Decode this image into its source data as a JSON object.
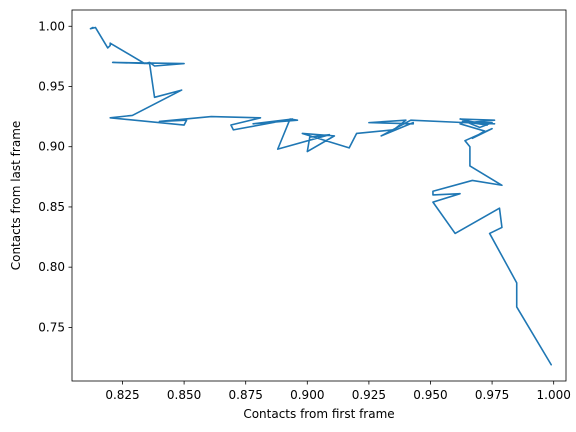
{
  "chart_data": {
    "type": "line",
    "title": "",
    "xlabel": "Contacts from first frame",
    "ylabel": "Contacts from last frame",
    "xlim": [
      0.8045,
      1.005
    ],
    "ylim": [
      0.7055,
      1.0135
    ],
    "xticks": [
      0.825,
      0.85,
      0.875,
      0.9,
      0.925,
      0.95,
      0.975,
      1.0
    ],
    "xtick_labels": [
      "0.825",
      "0.850",
      "0.875",
      "0.900",
      "0.925",
      "0.950",
      "0.975",
      "1.000"
    ],
    "yticks": [
      0.75,
      0.8,
      0.85,
      0.9,
      0.95,
      1.0
    ],
    "ytick_labels": [
      "0.75",
      "0.80",
      "0.85",
      "0.90",
      "0.95",
      "1.00"
    ],
    "grid": false,
    "color": "#1f77b4",
    "series": [
      {
        "x": [
          0.999,
          0.985,
          0.985,
          0.974,
          0.979,
          0.978,
          0.96,
          0.951,
          0.962,
          0.951,
          0.951,
          0.967,
          0.979,
          0.966,
          0.966,
          0.964,
          0.975,
          0.967,
          0.972,
          0.962,
          0.964,
          0.97,
          0.975,
          0.965,
          0.976,
          0.962,
          0.973,
          0.963,
          0.976,
          0.964,
          0.942,
          0.93,
          0.943,
          0.943,
          0.925,
          0.94,
          0.935,
          0.92,
          0.917,
          0.898,
          0.911,
          0.9,
          0.901,
          0.909,
          0.888,
          0.893,
          0.896,
          0.878,
          0.894,
          0.87,
          0.869,
          0.881,
          0.861,
          0.84,
          0.851,
          0.85,
          0.82,
          0.829,
          0.849,
          0.838,
          0.836,
          0.821,
          0.85,
          0.838,
          0.836,
          0.834,
          0.82,
          0.82,
          0.819,
          0.814,
          0.812,
          0.813
        ],
        "y": [
          0.719,
          0.767,
          0.787,
          0.828,
          0.833,
          0.849,
          0.828,
          0.854,
          0.861,
          0.86,
          0.863,
          0.872,
          0.868,
          0.884,
          0.9,
          0.905,
          0.915,
          0.907,
          0.913,
          0.919,
          0.921,
          0.916,
          0.92,
          0.92,
          0.922,
          0.923,
          0.918,
          0.921,
          0.919,
          0.92,
          0.922,
          0.909,
          0.92,
          0.919,
          0.92,
          0.922,
          0.914,
          0.911,
          0.899,
          0.911,
          0.909,
          0.896,
          0.908,
          0.91,
          0.898,
          0.923,
          0.922,
          0.919,
          0.923,
          0.914,
          0.918,
          0.924,
          0.925,
          0.921,
          0.922,
          0.918,
          0.924,
          0.926,
          0.947,
          0.941,
          0.969,
          0.97,
          0.969,
          0.967,
          0.97,
          0.969,
          0.986,
          0.984,
          0.982,
          0.999,
          0.998,
          0.999
        ]
      }
    ]
  }
}
